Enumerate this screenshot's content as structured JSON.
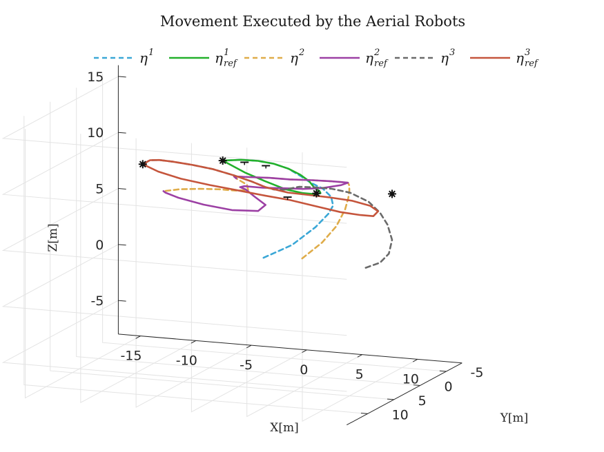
{
  "chart_data": {
    "type": "line",
    "title": "Movement Executed by the Aerial Robots",
    "xlabel": "X[m]",
    "ylabel": "Y[m]",
    "zlabel": "Z[m]",
    "xticks": [
      -15,
      -10,
      -5,
      0,
      5,
      10
    ],
    "yticks": [
      -5,
      0,
      5,
      10
    ],
    "zticks": [
      -5,
      0,
      5,
      10,
      15
    ],
    "xlim": [
      -17,
      14
    ],
    "ylim": [
      -8,
      14
    ],
    "zlim": [
      -8,
      16
    ],
    "grid": true,
    "legend_position": "top",
    "legend": [
      {
        "base": "η",
        "sup": "1",
        "sub": "",
        "color": "#3aa7d6",
        "dash": true
      },
      {
        "base": "η",
        "sup": "1",
        "sub": "ref",
        "color": "#22b02a",
        "dash": false
      },
      {
        "base": "η",
        "sup": "2",
        "sub": "",
        "color": "#dfac49",
        "dash": true
      },
      {
        "base": "η",
        "sup": "2",
        "sub": "ref",
        "color": "#9c40a4",
        "dash": false
      },
      {
        "base": "η",
        "sup": "3",
        "sub": "",
        "color": "#6a6a6a",
        "dash": true
      },
      {
        "base": "η",
        "sup": "3",
        "sub": "ref",
        "color": "#c5553c",
        "dash": false
      }
    ],
    "series": [
      {
        "name": "η1",
        "color": "#3aa7d6",
        "dash": true,
        "points": [
          [
            -1.3,
            -2.5,
            1.5
          ],
          [
            1.5,
            -2.0,
            3.0
          ],
          [
            4.0,
            -1.2,
            5.0
          ],
          [
            5.5,
            -0.5,
            6.5
          ],
          [
            6.3,
            0.3,
            7.5
          ],
          [
            6.5,
            1.1,
            8.5
          ],
          [
            6.0,
            1.6,
            9.3
          ],
          [
            5.0,
            1.8,
            9.8
          ],
          [
            4.0,
            1.5,
            10.2
          ],
          [
            2.5,
            0.8,
            10.6
          ],
          [
            0.8,
            0.0,
            10.7
          ],
          [
            -1.0,
            -0.8,
            10.6
          ],
          [
            -2.8,
            -1.4,
            10.4
          ],
          [
            -4.6,
            -1.7,
            10.1
          ]
        ]
      },
      {
        "name": "η1ref",
        "color": "#22b02a",
        "dash": false,
        "points": [
          [
            -4.6,
            -1.7,
            10.1
          ],
          [
            -2.8,
            -1.4,
            10.4
          ],
          [
            -1.0,
            -0.8,
            10.6
          ],
          [
            0.8,
            0.0,
            10.7
          ],
          [
            2.5,
            0.8,
            10.6
          ],
          [
            3.8,
            1.3,
            10.3
          ],
          [
            4.8,
            1.7,
            9.9
          ],
          [
            5.3,
            1.8,
            9.4
          ],
          [
            5.6,
            1.4,
            9.0
          ],
          [
            5.3,
            0.6,
            8.6
          ],
          [
            4.3,
            -0.3,
            8.2
          ],
          [
            2.9,
            -1.0,
            8.0
          ],
          [
            1.2,
            -1.4,
            8.1
          ],
          [
            -0.7,
            -1.6,
            8.6
          ],
          [
            -2.6,
            -1.7,
            9.2
          ],
          [
            -4.6,
            -1.7,
            10.1
          ]
        ]
      },
      {
        "name": "η2",
        "color": "#dfac49",
        "dash": true,
        "points": [
          [
            1.0,
            -5.0,
            1.0
          ],
          [
            3.5,
            -3.5,
            3.0
          ],
          [
            5.5,
            -2.0,
            5.0
          ],
          [
            7.0,
            -0.5,
            7.0
          ],
          [
            8.0,
            1.0,
            8.5
          ],
          [
            8.8,
            2.5,
            9.6
          ],
          [
            9.5,
            4.0,
            10.5
          ],
          [
            10.0,
            5.3,
            11.1
          ],
          [
            10.0,
            6.3,
            11.4
          ],
          [
            9.3,
            7.0,
            11.6
          ],
          [
            7.8,
            7.5,
            11.7
          ],
          [
            5.8,
            7.5,
            11.6
          ],
          [
            3.8,
            7.2,
            11.5
          ],
          [
            1.8,
            6.8,
            11.3
          ],
          [
            0.2,
            6.3,
            11.1
          ],
          [
            -0.3,
            4.8,
            10.5
          ],
          [
            -0.2,
            3.0,
            9.5
          ],
          [
            -0.8,
            1.5,
            8.6
          ],
          [
            -2.5,
            0.3,
            8.1
          ],
          [
            -4.5,
            -0.7,
            7.8
          ],
          [
            -6.5,
            -1.4,
            7.5
          ],
          [
            -8.5,
            -1.8,
            7.2
          ],
          [
            -10.0,
            -1.8,
            6.9
          ]
        ]
      },
      {
        "name": "η2ref",
        "color": "#9c40a4",
        "dash": false,
        "points": [
          [
            -0.3,
            4.8,
            10.5
          ],
          [
            0.2,
            6.3,
            11.1
          ],
          [
            1.8,
            6.8,
            11.3
          ],
          [
            3.8,
            7.2,
            11.5
          ],
          [
            5.8,
            7.5,
            11.6
          ],
          [
            7.8,
            7.5,
            11.7
          ],
          [
            9.3,
            7.0,
            11.6
          ],
          [
            10.0,
            6.3,
            11.4
          ],
          [
            10.0,
            5.3,
            11.1
          ],
          [
            9.0,
            4.5,
            10.6
          ],
          [
            7.0,
            3.8,
            10.0
          ],
          [
            5.0,
            3.2,
            9.6
          ],
          [
            3.0,
            2.8,
            9.4
          ],
          [
            1.0,
            2.5,
            9.2
          ],
          [
            -1.0,
            1.8,
            9.0
          ],
          [
            -2.0,
            0.5,
            8.5
          ],
          [
            -2.2,
            -1.0,
            7.9
          ],
          [
            -2.0,
            -2.2,
            7.0
          ],
          [
            -1.5,
            -3.3,
            6.0
          ],
          [
            -2.5,
            -4.0,
            5.2
          ],
          [
            -5.0,
            -4.3,
            5.0
          ],
          [
            -7.5,
            -4.2,
            5.3
          ],
          [
            -9.5,
            -3.6,
            5.9
          ],
          [
            -10.3,
            -2.8,
            6.5
          ],
          [
            -10.0,
            -1.8,
            6.9
          ]
        ]
      },
      {
        "name": "η3",
        "color": "#6a6a6a",
        "dash": true,
        "points": [
          [
            6.5,
            -5.5,
            0.5
          ],
          [
            8.5,
            -4.0,
            1.5
          ],
          [
            10.0,
            -2.5,
            2.8
          ],
          [
            11.0,
            -1.0,
            4.5
          ],
          [
            11.2,
            0.3,
            6.2
          ],
          [
            11.0,
            1.3,
            7.5
          ],
          [
            10.3,
            2.0,
            8.6
          ],
          [
            9.0,
            2.8,
            9.5
          ],
          [
            7.5,
            3.1,
            9.8
          ],
          [
            6.0,
            3.1,
            9.8
          ],
          [
            4.5,
            3.0,
            9.7
          ],
          [
            3.3,
            3.2,
            9.4
          ],
          [
            2.3,
            3.1,
            9.3
          ],
          [
            1.3,
            2.6,
            9.3
          ],
          [
            -0.2,
            2.2,
            9.6
          ],
          [
            -2.0,
            1.8,
            9.9
          ],
          [
            -4.0,
            1.5,
            10.2
          ],
          [
            -6.0,
            1.1,
            10.3
          ],
          [
            -8.0,
            0.6,
            10.3
          ],
          [
            -9.5,
            0.1,
            10.2
          ],
          [
            -10.5,
            -0.3,
            10.0
          ],
          [
            -11.3,
            -0.6,
            9.5
          ]
        ]
      },
      {
        "name": "η3ref",
        "color": "#c5553c",
        "dash": false,
        "points": [
          [
            -11.3,
            -0.6,
            9.5
          ],
          [
            -10.5,
            -0.3,
            10.0
          ],
          [
            -9.5,
            0.1,
            10.2
          ],
          [
            -8.0,
            0.6,
            10.3
          ],
          [
            -6.0,
            1.1,
            10.3
          ],
          [
            -4.0,
            1.5,
            10.2
          ],
          [
            -2.0,
            1.8,
            9.9
          ],
          [
            -0.2,
            2.2,
            9.6
          ],
          [
            1.3,
            2.6,
            9.3
          ],
          [
            3.5,
            3.0,
            9.1
          ],
          [
            5.5,
            3.2,
            9.1
          ],
          [
            7.5,
            3.4,
            9.1
          ],
          [
            9.5,
            3.5,
            9.0
          ],
          [
            11.0,
            3.2,
            8.6
          ],
          [
            11.3,
            2.3,
            7.9
          ],
          [
            10.5,
            1.5,
            7.2
          ],
          [
            9.0,
            0.8,
            7.0
          ],
          [
            7.0,
            0.4,
            7.0
          ],
          [
            4.5,
            -0.1,
            7.2
          ],
          [
            2.0,
            -0.6,
            7.4
          ],
          [
            -0.5,
            -1.0,
            7.5
          ],
          [
            -3.0,
            -1.2,
            7.7
          ],
          [
            -5.5,
            -1.1,
            8.0
          ],
          [
            -8.0,
            -0.9,
            8.4
          ],
          [
            -10.0,
            -0.8,
            8.9
          ],
          [
            -11.3,
            -0.6,
            9.5
          ]
        ]
      }
    ],
    "markers": [
      [
        -11.3,
        -0.6,
        9.5
      ],
      [
        -4.6,
        -1.7,
        10.1
      ],
      [
        5.5,
        1.8,
        8.9
      ],
      [
        11.0,
        -1.0,
        8.6
      ]
    ],
    "drones": [
      [
        -2.5,
        -1.4,
        10.2
      ],
      [
        0.8,
        1.5,
        10.9
      ],
      [
        1.2,
        -1.8,
        7.3
      ]
    ]
  }
}
